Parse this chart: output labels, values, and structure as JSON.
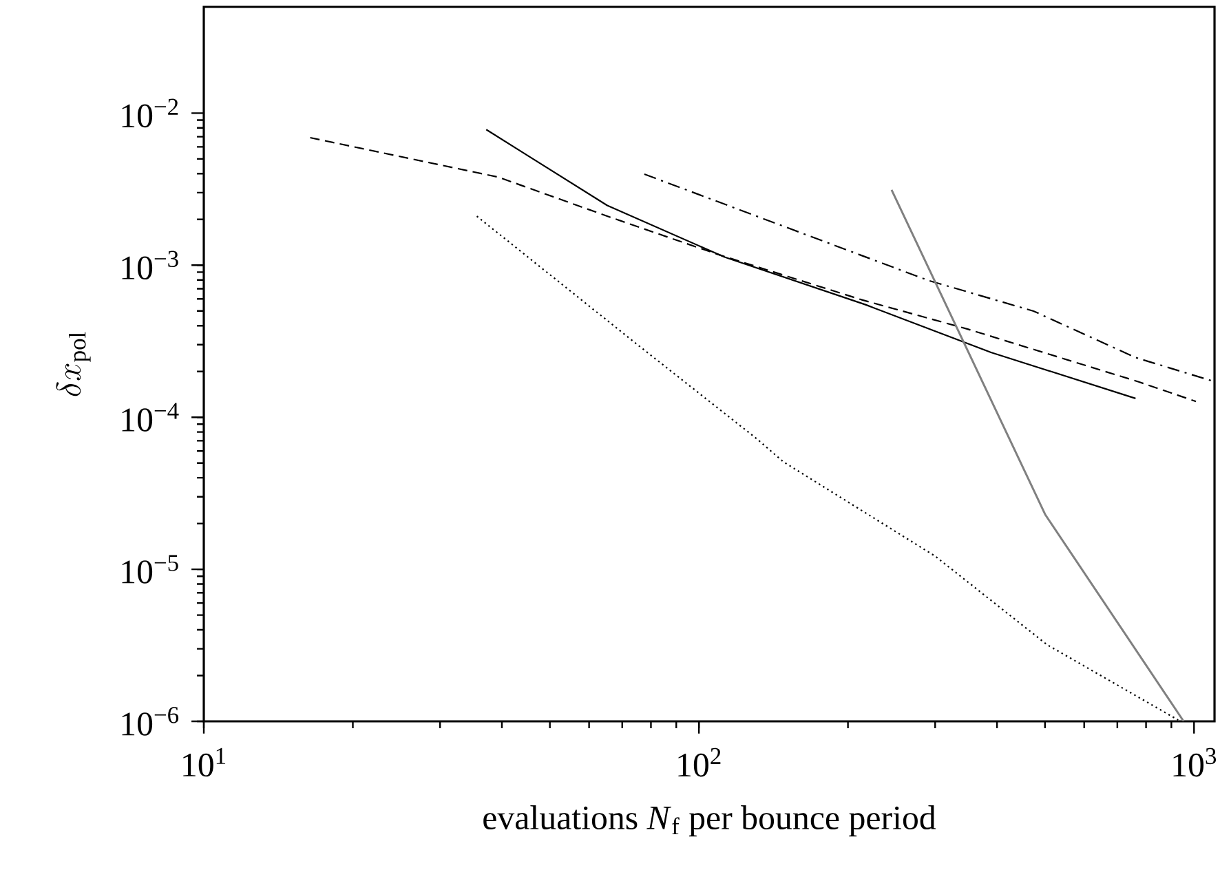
{
  "chart_data": {
    "type": "line",
    "xlabel": "evaluations *N*$_{f}$ per bounce period",
    "ylabel": "\\delta x_{\\mathrm{pol}}",
    "log": "xy",
    "xlim": [
      10,
      1100
    ],
    "ylim": [
      1e-06,
      0.05
    ],
    "xticks": [
      {
        "value": 10,
        "label": "10$^{1}$"
      },
      {
        "value": 100,
        "label": "10$^{2}$"
      },
      {
        "value": 1000,
        "label": "10$^{3}$"
      }
    ],
    "yticks": [
      {
        "value": 1e-06,
        "label": "10$^{−6}$"
      },
      {
        "value": 1e-05,
        "label": "10$^{−5}$"
      },
      {
        "value": 0.0001,
        "label": "10$^{−4}$"
      },
      {
        "value": 0.001,
        "label": "10$^{−3}$"
      },
      {
        "value": 0.01,
        "label": "10$^{−2}$"
      }
    ],
    "marker": "none",
    "series": [
      {
        "color": "#000000",
        "line_style": "dashed",
        "x": [
          16.4,
          39.3,
          67,
          109,
          214,
          349,
          773,
          1009
        ],
        "values": [
          0.0069,
          0.0038,
          0.00204,
          0.00118,
          0.00059,
          0.00038,
          0.000171,
          0.000127
        ]
      },
      {
        "color": "#000000",
        "line_style": "solid",
        "x": [
          37.2,
          65.3,
          112.7,
          217,
          389,
          762
        ],
        "values": [
          0.0078,
          0.00247,
          0.00113,
          0.00055,
          0.000267,
          0.000133
        ]
      },
      {
        "color": "#000000",
        "line_style": "dashdot",
        "x": [
          77.6,
          290,
          474,
          762,
          1084
        ],
        "values": [
          0.00397,
          0.000796,
          0.000499,
          0.000247,
          0.000174
        ]
      },
      {
        "color": "#808080",
        "line_style": "solid",
        "x": [
          245,
          501,
          953
        ],
        "values": [
          0.00313,
          2.28e-05,
          1e-06
        ]
      },
      {
        "color": "#000000",
        "line_style": "dotted",
        "x": [
          35.6,
          74.5,
          131,
          148,
          300,
          505,
          929
        ],
        "values": [
          0.0021,
          0.000307,
          7.2e-05,
          5.1e-05,
          1.22e-05,
          3.19e-06,
          1.02e-06
        ]
      }
    ]
  }
}
